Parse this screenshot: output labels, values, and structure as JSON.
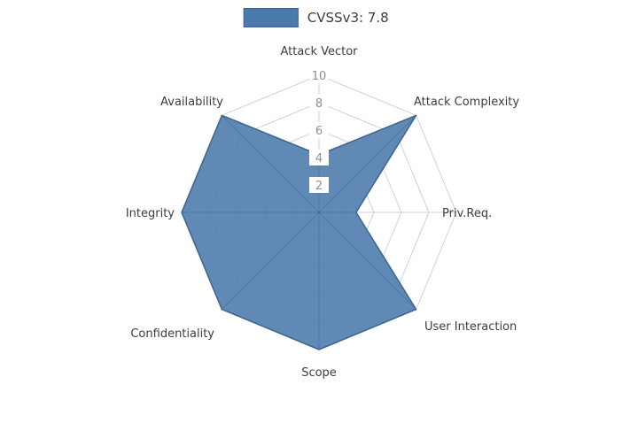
{
  "legend": {
    "label": "CVSSv3: 7.8"
  },
  "chart_data": {
    "type": "radar",
    "title": "",
    "legend_entries": [
      "CVSSv3: 7.8"
    ],
    "legend_position": "top-center",
    "categories": [
      "Attack Vector",
      "Attack Complexity",
      "Priv.Req.",
      "User Interaction",
      "Scope",
      "Confidentiality",
      "Integrity",
      "Availability"
    ],
    "series": [
      {
        "name": "CVSSv3: 7.8",
        "values": [
          4.2,
          10,
          2.7,
          10,
          10,
          10,
          10,
          10
        ]
      }
    ],
    "radial_ticks": [
      2,
      4,
      6,
      8,
      10
    ],
    "radial_range": [
      0,
      10
    ],
    "grid": "spider-web",
    "colors": {
      "fill": "#4a7aab",
      "stroke": "#3a648f",
      "grid": "#d2d2d2",
      "axis_label": "#3d3d3d",
      "tick_label": "#8e8e8e",
      "background": "#ffffff"
    }
  }
}
